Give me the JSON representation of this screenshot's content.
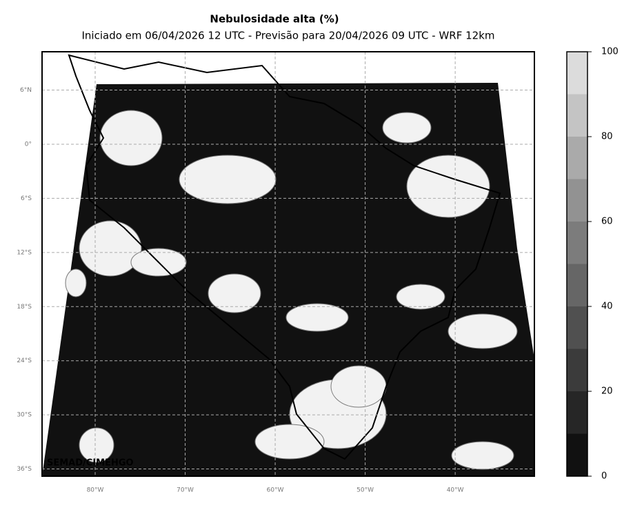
{
  "map": {
    "title": "Nebulosidade alta (%)",
    "subtitle": "Iniciado em 06/04/2026 12 UTC - Previsão para 20/04/2026 09 UTC - WRF 12km",
    "credit": "SEMAD/CIMEHGO",
    "xlim": [
      -85.9,
      -31.2
    ],
    "ylim": [
      -36.8,
      10.25
    ],
    "lat_ticks": [
      {
        "value": 6,
        "label": "6°N"
      },
      {
        "value": 0,
        "label": "0°"
      },
      {
        "value": -6,
        "label": "6°S"
      },
      {
        "value": -12,
        "label": "12°S"
      },
      {
        "value": -18,
        "label": "18°S"
      },
      {
        "value": -24,
        "label": "24°S"
      },
      {
        "value": -30,
        "label": "30°S"
      },
      {
        "value": -36,
        "label": "36°S"
      }
    ],
    "lon_ticks": [
      {
        "value": -80,
        "label": "80°W"
      },
      {
        "value": -70,
        "label": "70°W"
      },
      {
        "value": -60,
        "label": "60°W"
      },
      {
        "value": -50,
        "label": "50°W"
      },
      {
        "value": -40,
        "label": "40°W"
      }
    ],
    "colorbar": {
      "levels": [
        0,
        10,
        20,
        30,
        40,
        50,
        60,
        70,
        80,
        90,
        100
      ],
      "colors": [
        "#111111",
        "#262626",
        "#3b3b3b",
        "#505050",
        "#666666",
        "#7c7c7c",
        "#929292",
        "#aaaaaa",
        "#c4c4c4",
        "#dcdcdc",
        "#f2f2f2"
      ],
      "ticks": [
        0,
        20,
        40,
        60,
        80,
        100
      ]
    }
  }
}
